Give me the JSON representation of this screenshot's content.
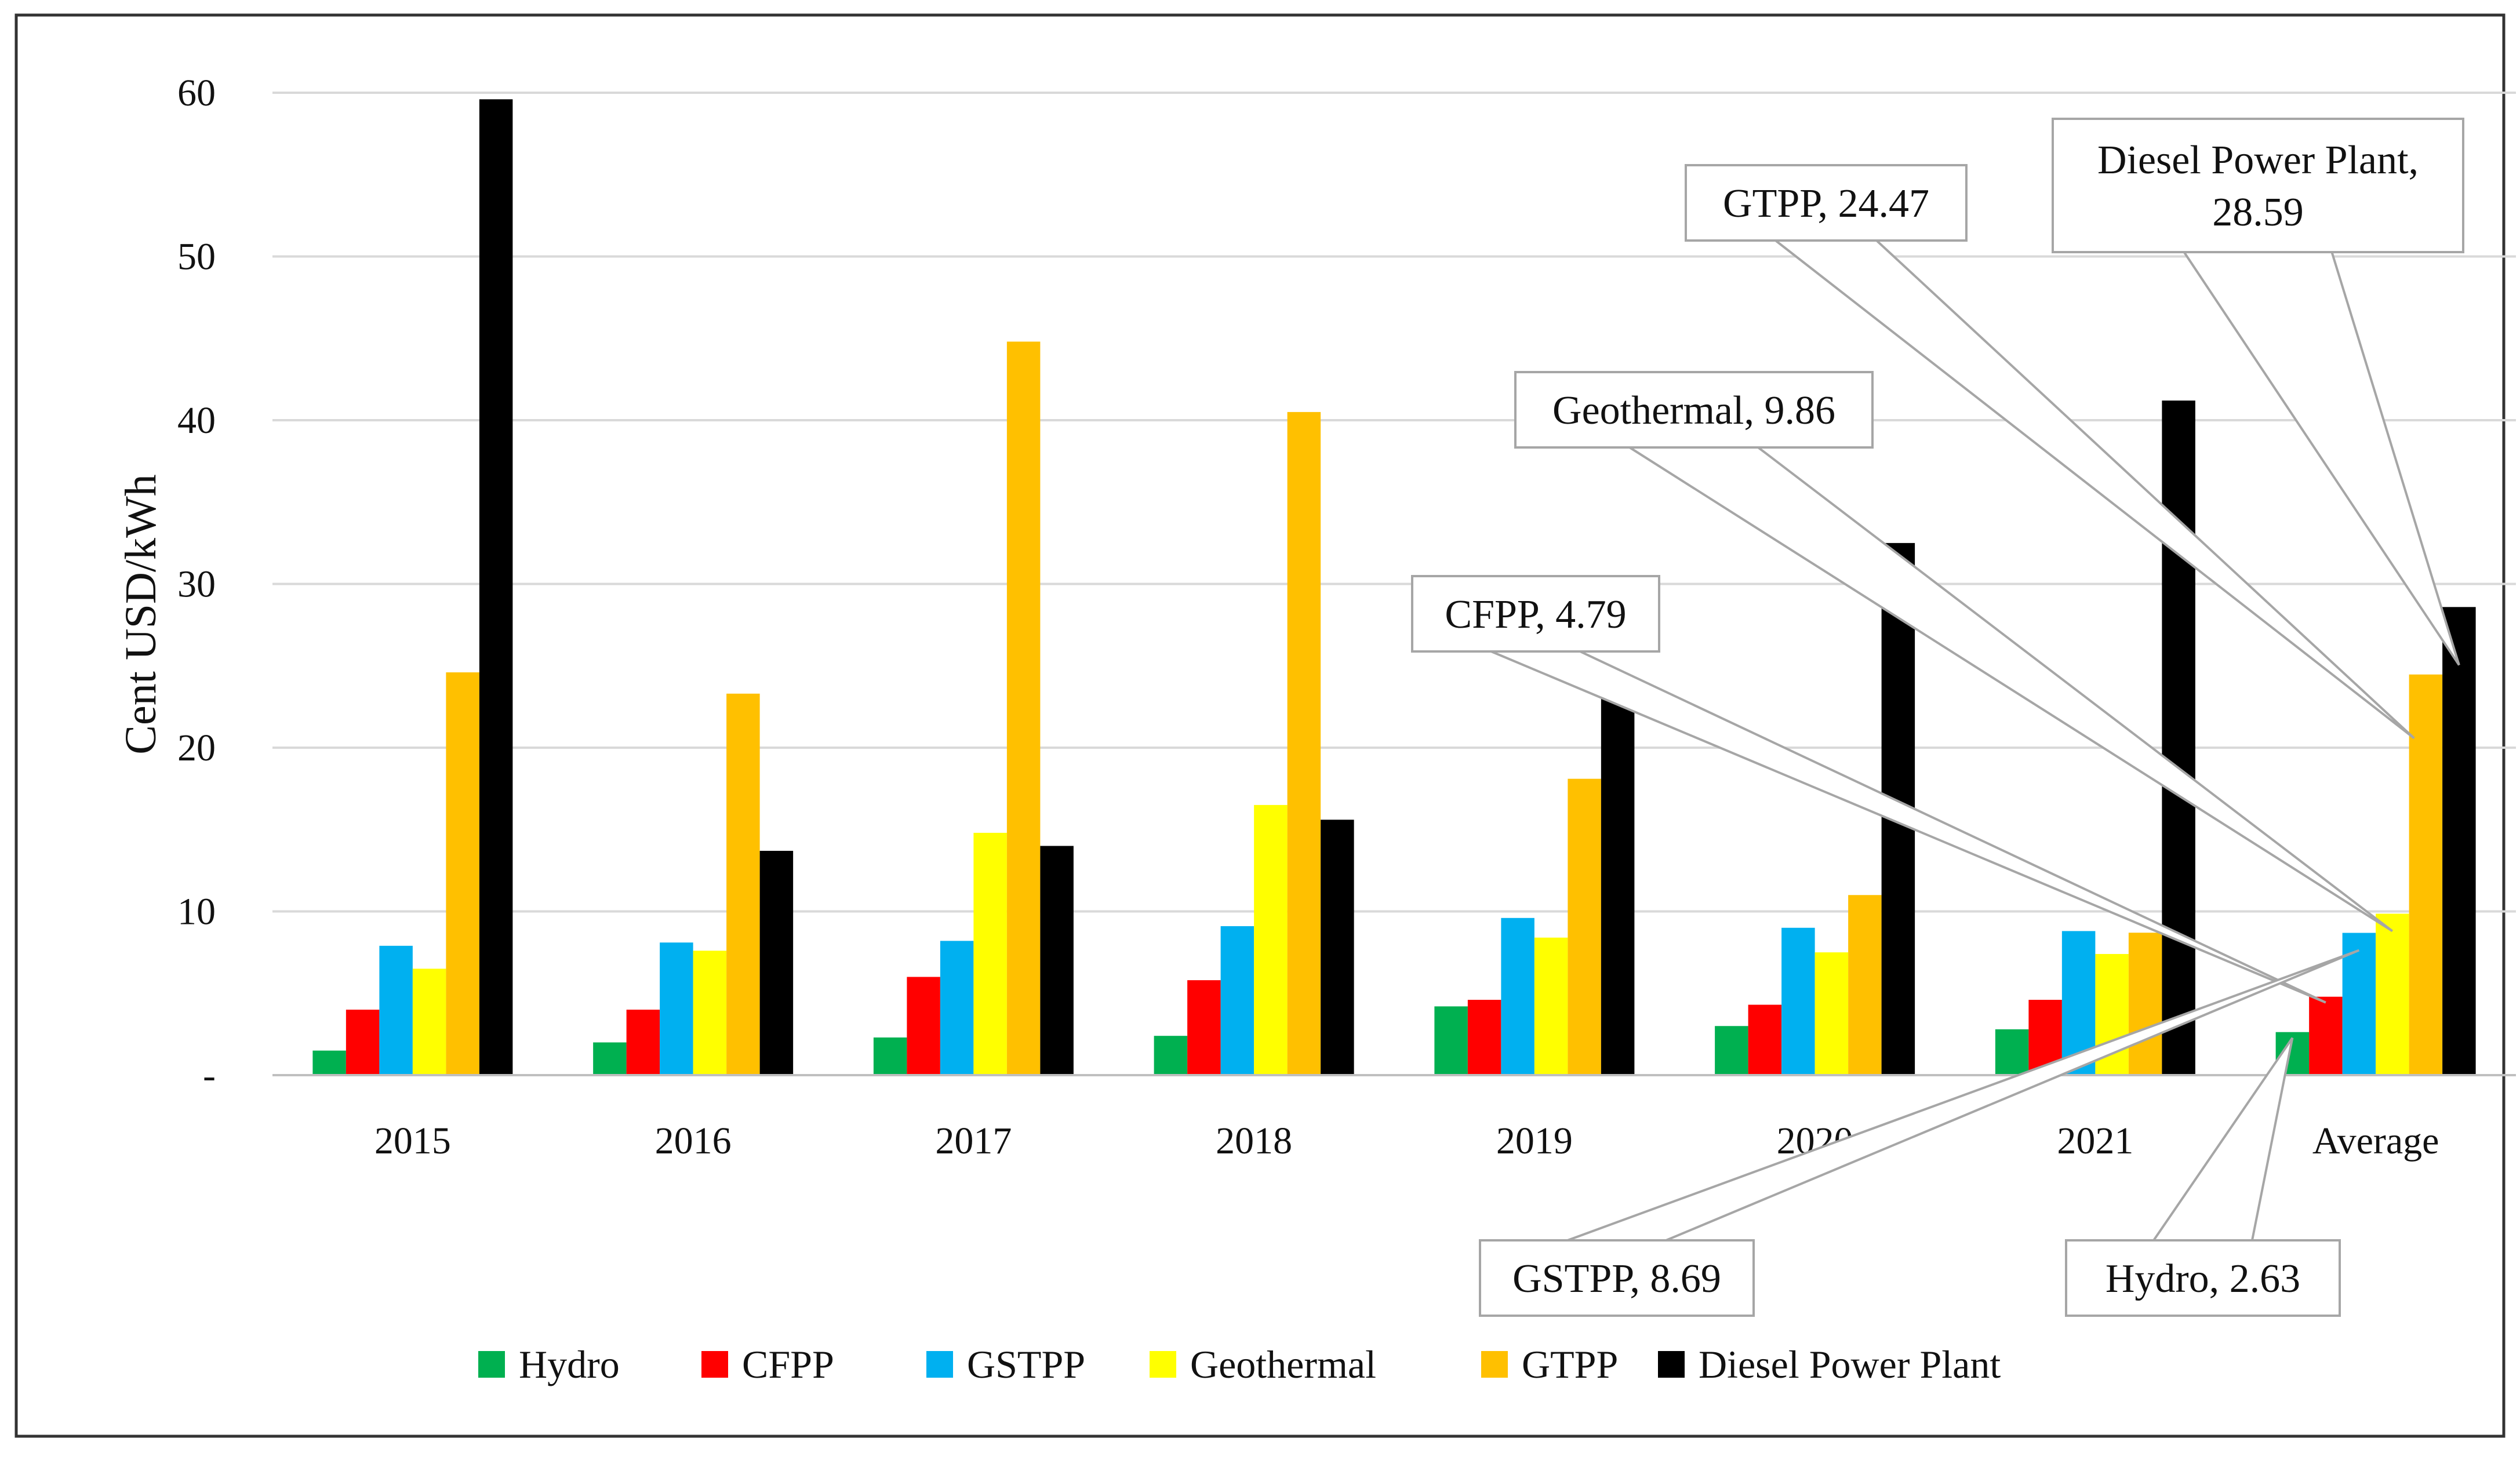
{
  "chart_data": {
    "type": "bar",
    "title": "",
    "xlabel": "",
    "ylabel": "Cent USD/kWh",
    "ylim": [
      0,
      60
    ],
    "yticks": [
      {
        "value": 0,
        "label": "-"
      },
      {
        "value": 10,
        "label": "10"
      },
      {
        "value": 20,
        "label": "20"
      },
      {
        "value": 30,
        "label": "30"
      },
      {
        "value": 40,
        "label": "40"
      },
      {
        "value": 50,
        "label": "50"
      },
      {
        "value": 60,
        "label": "60"
      }
    ],
    "grid": true,
    "legend_position": "bottom",
    "categories": [
      "2015",
      "2016",
      "2017",
      "2018",
      "2019",
      "2020",
      "2021",
      "Average"
    ],
    "series": [
      {
        "name": "Hydro",
        "color": "#00B050",
        "values": [
          1.5,
          2.0,
          2.3,
          2.4,
          4.2,
          3.0,
          2.8,
          2.63
        ]
      },
      {
        "name": "CFPP",
        "color": "#FF0000",
        "values": [
          4.0,
          4.0,
          6.0,
          5.8,
          4.6,
          4.3,
          4.6,
          4.79
        ]
      },
      {
        "name": "GSTPP",
        "color": "#00B0F0",
        "values": [
          7.9,
          8.1,
          8.2,
          9.1,
          9.6,
          9.0,
          8.8,
          8.69
        ]
      },
      {
        "name": "Geothermal",
        "color": "#FFFF00",
        "values": [
          6.5,
          7.6,
          14.8,
          16.5,
          8.4,
          7.5,
          7.4,
          9.86
        ]
      },
      {
        "name": "GTPP",
        "color": "#FFC000",
        "values": [
          24.6,
          23.3,
          44.8,
          40.5,
          18.1,
          11.0,
          8.7,
          24.47
        ]
      },
      {
        "name": "Diesel Power Plant",
        "color": "#000000",
        "values": [
          59.6,
          13.7,
          14.0,
          15.6,
          23.3,
          32.5,
          41.2,
          28.59
        ]
      }
    ],
    "annotations": [
      {
        "id": "hydro",
        "text": "Hydro,  2.63",
        "category": "Average",
        "series": "Hydro"
      },
      {
        "id": "cfpp",
        "text": "CFPP,  4.79",
        "category": "Average",
        "series": "CFPP"
      },
      {
        "id": "gstpp",
        "text": "GSTPP,  8.69",
        "category": "Average",
        "series": "GSTPP"
      },
      {
        "id": "geo",
        "text": "Geothermal,  9.86",
        "category": "Average",
        "series": "Geothermal"
      },
      {
        "id": "gtpp",
        "text": "GTPP,  24.47",
        "category": "Average",
        "series": "GTPP"
      },
      {
        "id": "diesel",
        "lines": [
          "Diesel Power Plant,",
          "28.59"
        ],
        "category": "Average",
        "series": "Diesel Power Plant"
      }
    ]
  }
}
